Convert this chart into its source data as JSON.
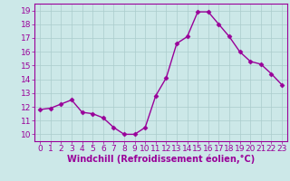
{
  "x": [
    0,
    1,
    2,
    3,
    4,
    5,
    6,
    7,
    8,
    9,
    10,
    11,
    12,
    13,
    14,
    15,
    16,
    17,
    18,
    19,
    20,
    21,
    22,
    23
  ],
  "y": [
    11.8,
    11.9,
    12.2,
    12.5,
    11.6,
    11.5,
    11.2,
    10.5,
    10.0,
    10.0,
    10.5,
    12.8,
    14.1,
    16.6,
    17.1,
    18.9,
    18.9,
    18.0,
    17.1,
    16.0,
    15.3,
    15.1,
    14.4,
    13.6
  ],
  "line_color": "#990099",
  "marker": "D",
  "marker_size": 2.5,
  "bg_color": "#cce8e8",
  "grid_color": "#aacccc",
  "xlabel": "Windchill (Refroidissement éolien,°C)",
  "ylabel_ticks": [
    10,
    11,
    12,
    13,
    14,
    15,
    16,
    17,
    18,
    19
  ],
  "ylim": [
    9.5,
    19.5
  ],
  "xlim": [
    -0.5,
    23.5
  ],
  "axis_color": "#990099",
  "tick_color": "#990099",
  "label_color": "#990099",
  "font_size": 6.5,
  "xlabel_fontsize": 7,
  "linewidth": 1.0
}
